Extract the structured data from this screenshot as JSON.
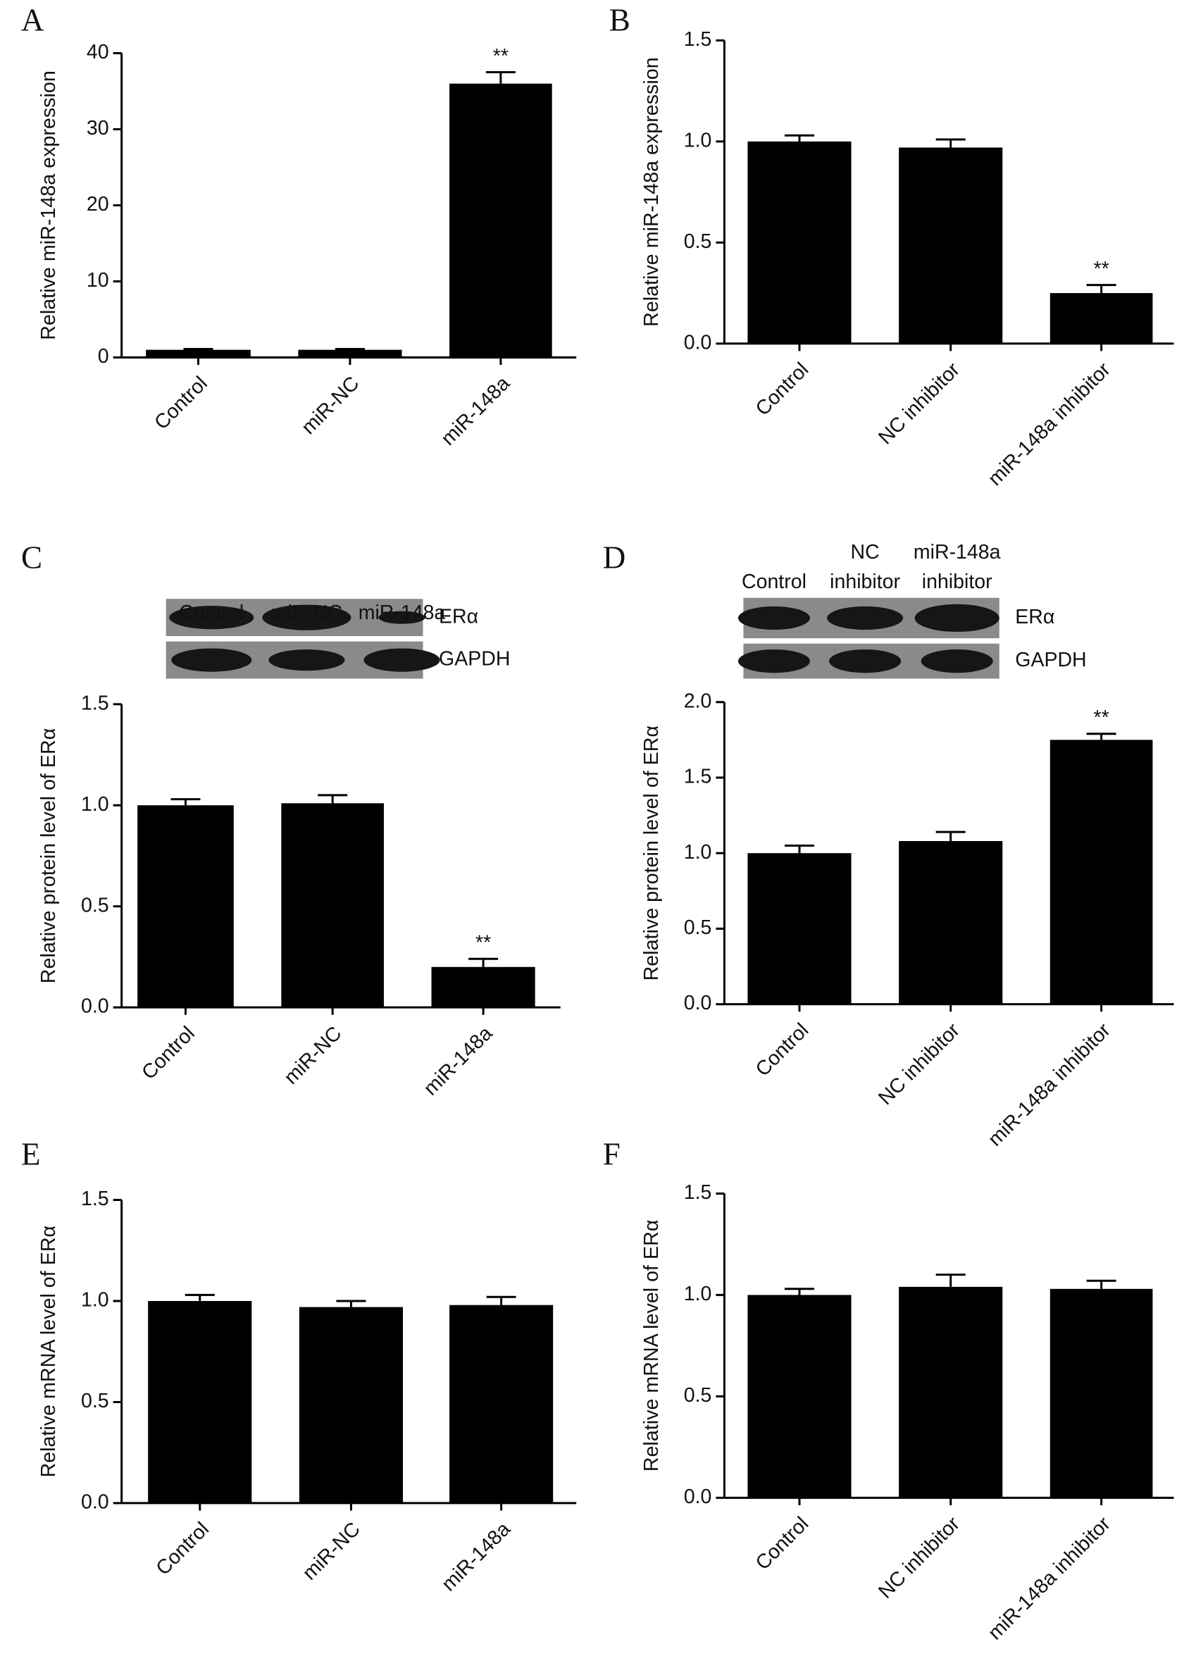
{
  "chart_data": [
    {
      "type": "bar",
      "panel": "A",
      "ylabel": "Relative miR-148a expression",
      "categories": [
        "Control",
        "miR-NC",
        "miR-148a"
      ],
      "values": [
        1,
        1,
        36
      ],
      "errors": [
        0.1,
        0.1,
        1.5
      ],
      "value_annotations": [
        null,
        null,
        "**"
      ],
      "color": "#000000",
      "ylim": [
        0,
        40
      ],
      "yticks": [
        0,
        10,
        20,
        30,
        40
      ]
    },
    {
      "type": "bar",
      "panel": "B",
      "ylabel": "Relative miR-148a expression",
      "categories": [
        "Control",
        "NC inhibitor",
        "miR-148a inhibitor"
      ],
      "values": [
        1.0,
        0.97,
        0.25
      ],
      "errors": [
        0.03,
        0.04,
        0.04
      ],
      "value_annotations": [
        null,
        null,
        "**"
      ],
      "color": "#000000",
      "ylim": [
        0,
        1.5
      ],
      "yticks": [
        {
          "value": 0,
          "label": "0.0"
        },
        0.5,
        {
          "value": 1,
          "label": "1.0"
        },
        1.5
      ]
    },
    {
      "type": "bar",
      "panel": "C",
      "ylabel": "Relative protein level of ERα",
      "blot": {
        "lanes": [
          [
            "Control"
          ],
          [
            "miR-NC"
          ],
          [
            "miR-148a"
          ]
        ],
        "rows": [
          "ERα",
          "GAPDH"
        ]
      },
      "categories": [
        "Control",
        "miR-NC",
        "miR-148a"
      ],
      "values": [
        1.0,
        1.01,
        0.2
      ],
      "errors": [
        0.03,
        0.04,
        0.04
      ],
      "value_annotations": [
        null,
        null,
        "**"
      ],
      "color": "#000000",
      "ylim": [
        0,
        1.5
      ],
      "yticks": [
        {
          "value": 0,
          "label": "0.0"
        },
        0.5,
        {
          "value": 1,
          "label": "1.0"
        },
        1.5
      ]
    },
    {
      "type": "bar",
      "panel": "D",
      "ylabel": "Relative protein level of ERα",
      "blot": {
        "lanes": [
          [
            "Control"
          ],
          [
            "NC",
            "inhibitor"
          ],
          [
            "miR-148a",
            "inhibitor"
          ]
        ],
        "rows": [
          "ERα",
          "GAPDH"
        ]
      },
      "categories": [
        "Control",
        "NC inhibitor",
        "miR-148a inhibitor"
      ],
      "values": [
        1.0,
        1.08,
        1.75
      ],
      "errors": [
        0.05,
        0.06,
        0.04
      ],
      "value_annotations": [
        null,
        null,
        "**"
      ],
      "color": "#000000",
      "ylim": [
        0,
        2
      ],
      "yticks": [
        {
          "value": 0,
          "label": "0.0"
        },
        0.5,
        {
          "value": 1,
          "label": "1.0"
        },
        1.5,
        {
          "value": 2,
          "label": "2.0"
        }
      ]
    },
    {
      "type": "bar",
      "panel": "E",
      "ylabel": "Relative mRNA level of ERα",
      "categories": [
        "Control",
        "miR-NC",
        "miR-148a"
      ],
      "values": [
        1.0,
        0.97,
        0.98
      ],
      "errors": [
        0.03,
        0.03,
        0.04
      ],
      "color": "#000000",
      "ylim": [
        0,
        1.5
      ],
      "yticks": [
        {
          "value": 0,
          "label": "0.0"
        },
        0.5,
        {
          "value": 1,
          "label": "1.0"
        },
        1.5
      ]
    },
    {
      "type": "bar",
      "panel": "F",
      "ylabel": "Relative mRNA level of ERα",
      "categories": [
        "Control",
        "NC inhibitor",
        "miR-148a inhibitor"
      ],
      "values": [
        1.0,
        1.04,
        1.03
      ],
      "errors": [
        0.03,
        0.06,
        0.04
      ],
      "color": "#000000",
      "ylim": [
        0,
        1.5
      ],
      "yticks": [
        {
          "value": 0,
          "label": "0.0"
        },
        0.5,
        {
          "value": 1,
          "label": "1.0"
        },
        1.5
      ]
    }
  ]
}
